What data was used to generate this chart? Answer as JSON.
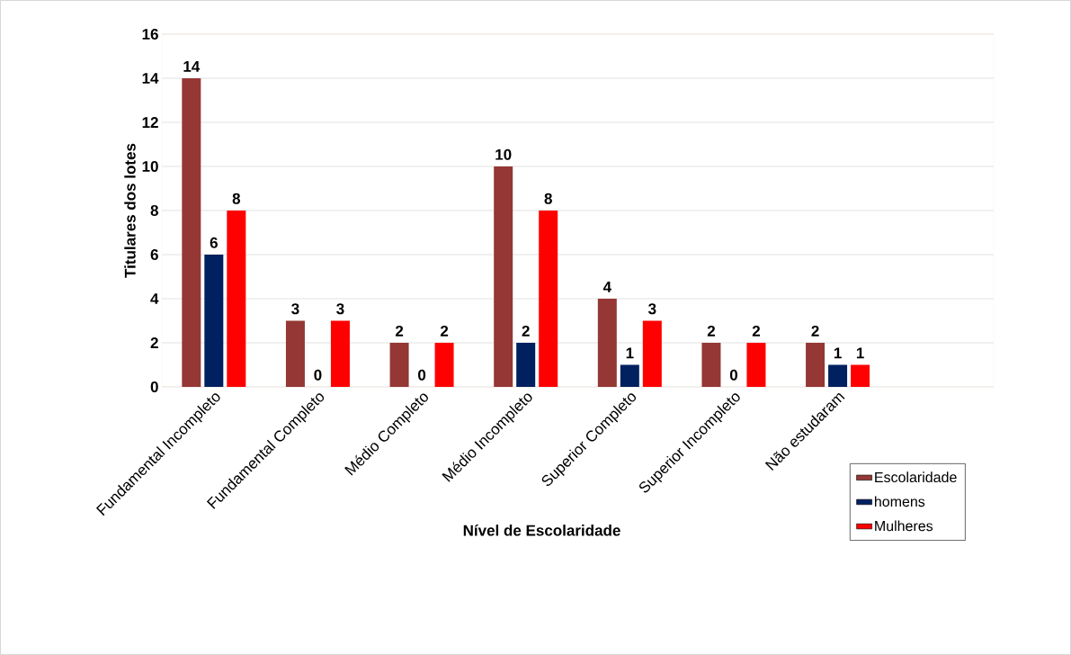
{
  "chart_data": {
    "type": "bar",
    "xlabel": "Nível de Escolaridade",
    "ylabel": "Titulares dos lotes",
    "categories": [
      "Fundamental Incompleto",
      "Fundamental Completo",
      "Médio Completo",
      "Médio Incompleto",
      "Superior Completo",
      "Superior Incompleto",
      "Não estudaram",
      null
    ],
    "series": [
      {
        "name": "Escolaridade",
        "color": "#953735",
        "values": [
          14,
          3,
          2,
          10,
          4,
          2,
          2,
          null
        ]
      },
      {
        "name": "homens",
        "color": "#002060",
        "values": [
          6,
          0,
          0,
          2,
          1,
          0,
          1,
          null
        ]
      },
      {
        "name": "Mulheres",
        "color": "#ff0000",
        "values": [
          8,
          3,
          2,
          8,
          3,
          2,
          1,
          null
        ]
      }
    ],
    "ylim": [
      0,
      16
    ],
    "yticks": [
      0,
      2,
      4,
      6,
      8,
      10,
      12,
      14,
      16
    ],
    "grid": "y",
    "legend": "bottom right",
    "data_labels": true
  }
}
